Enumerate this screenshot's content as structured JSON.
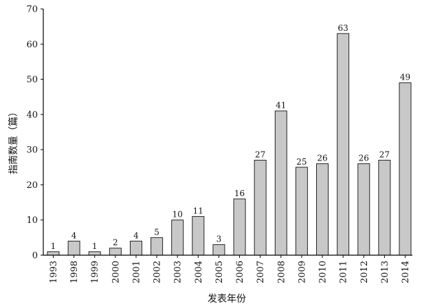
{
  "chart_data": {
    "type": "bar",
    "title": "",
    "xlabel": "发表年份",
    "ylabel": "指南数量（篇）",
    "categories": [
      "1993",
      "1998",
      "1999",
      "2000",
      "2001",
      "2002",
      "2003",
      "2004",
      "2005",
      "2006",
      "2007",
      "2008",
      "2009",
      "2010",
      "2011",
      "2012",
      "2013",
      "2014"
    ],
    "values": [
      1,
      4,
      1,
      2,
      4,
      5,
      10,
      11,
      3,
      16,
      27,
      41,
      25,
      26,
      63,
      26,
      27,
      49
    ],
    "ylim": [
      0,
      70
    ],
    "yticks": [
      0,
      10,
      20,
      30,
      40,
      50,
      60,
      70
    ],
    "grid": false,
    "legend": "none",
    "colors": {
      "bar_fill": "#c8c8c8",
      "bar_stroke": "#222222",
      "axis": "#000000"
    }
  }
}
